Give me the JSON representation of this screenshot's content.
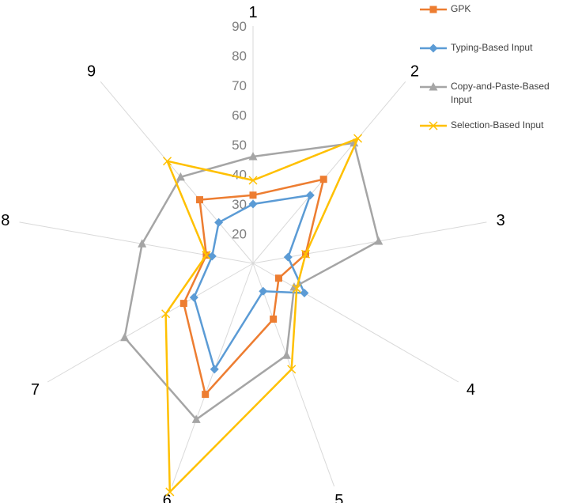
{
  "chart_data": {
    "type": "radar",
    "categories": [
      "1",
      "2",
      "3",
      "4",
      "5",
      "6",
      "7",
      "8",
      "9"
    ],
    "radial_ticks": [
      20,
      30,
      40,
      50,
      60,
      70,
      80,
      90
    ],
    "rlim": [
      10,
      90
    ],
    "grid": "spokes only",
    "legend_position": "top-right",
    "series": [
      {
        "name": "GPK",
        "color": "#ED7D31",
        "marker": "square",
        "values": [
          33,
          47,
          28,
          20,
          30,
          57,
          37,
          26,
          38
        ]
      },
      {
        "name": "Typing-Based Input",
        "color": "#5B9BD5",
        "marker": "diamond",
        "values": [
          30,
          40,
          22,
          30,
          20,
          48,
          33,
          24,
          28
        ]
      },
      {
        "name": "Copy-and-Paste-Based Input",
        "color": "#A5A5A5",
        "marker": "triangle",
        "values": [
          46,
          63,
          53,
          26,
          43,
          66,
          60,
          48,
          48
        ]
      },
      {
        "name": "Selection-Based Input",
        "color": "#FFC000",
        "marker": "x",
        "values": [
          38,
          65,
          28,
          27,
          48,
          92,
          44,
          26,
          55
        ]
      }
    ]
  }
}
